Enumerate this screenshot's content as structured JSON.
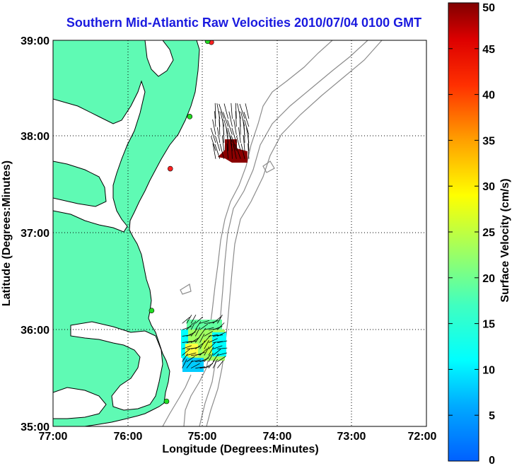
{
  "title": "Southern Mid-Atlantic Raw Velocities 2010/07/04 0100 GMT",
  "axes": {
    "xlabel": "Longitude (Degrees:Minutes)",
    "ylabel": "Latitude (Degrees:Minutes)",
    "x_ticks": [
      "77:00",
      "76:00",
      "75:00",
      "74:00",
      "73:00",
      "72:00"
    ],
    "y_ticks": [
      "39:00",
      "38:00",
      "37:00",
      "36:00",
      "35:00"
    ],
    "lon_range": [
      -77,
      -72
    ],
    "lat_range": [
      35,
      39
    ],
    "grid": "dotted"
  },
  "colorbar": {
    "label": "Surface Velocity (cm/s)",
    "ticks": [
      "50",
      "45",
      "40",
      "35",
      "30",
      "25",
      "20",
      "15",
      "10",
      "5",
      "0"
    ],
    "range": [
      0,
      50
    ],
    "colormap": "jet"
  },
  "colors": {
    "land": "#5ffab4",
    "water": "#ffffff",
    "bathymetry": "#8c8c8c",
    "title": "#1a1adf",
    "site_active": "#22dd22",
    "site_inactive": "#ff2222"
  },
  "stations": [
    {
      "lon": -74.88,
      "lat": 38.98,
      "status": "inactive"
    },
    {
      "lon": -74.93,
      "lat": 38.99,
      "status": "active"
    },
    {
      "lon": -75.17,
      "lat": 38.21,
      "status": "active"
    },
    {
      "lon": -75.43,
      "lat": 37.67,
      "status": "inactive"
    },
    {
      "lon": -75.68,
      "lat": 36.2,
      "status": "active"
    },
    {
      "lon": -75.48,
      "lat": 35.26,
      "status": "active"
    }
  ],
  "velocity_regions": [
    {
      "name": "north",
      "lon": [
        -74.85,
        -74.35
      ],
      "lat": [
        37.73,
        37.98
      ],
      "speed_cm_s": 50
    },
    {
      "name": "south",
      "lon": [
        -75.3,
        -74.77
      ],
      "lat": [
        35.57,
        36.1
      ],
      "speed_cm_s": [
        10,
        22
      ]
    }
  ]
}
